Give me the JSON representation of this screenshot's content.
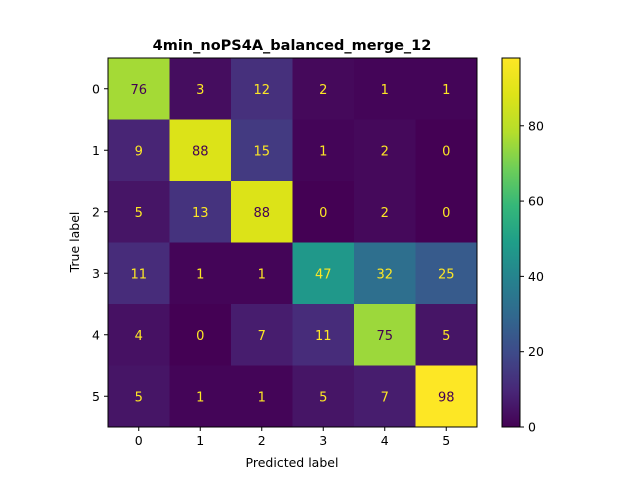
{
  "chart_data": {
    "type": "heatmap",
    "title": "4min_noPS4A_balanced_merge_12",
    "xlabel": "Predicted label",
    "ylabel": "True label",
    "x_ticks": [
      "0",
      "1",
      "2",
      "3",
      "4",
      "5"
    ],
    "y_ticks": [
      "0",
      "1",
      "2",
      "3",
      "4",
      "5"
    ],
    "matrix": [
      [
        76,
        3,
        12,
        2,
        1,
        1
      ],
      [
        9,
        88,
        15,
        1,
        2,
        0
      ],
      [
        5,
        13,
        88,
        0,
        2,
        0
      ],
      [
        11,
        1,
        1,
        47,
        32,
        25
      ],
      [
        4,
        0,
        7,
        11,
        75,
        5
      ],
      [
        5,
        1,
        1,
        5,
        7,
        98
      ]
    ],
    "colorscale": "viridis",
    "vmin": 0,
    "vmax": 98,
    "colorbar_ticks": [
      "0",
      "20",
      "40",
      "60",
      "80"
    ],
    "colorbar_tick_values": [
      0,
      20,
      40,
      60,
      80
    ],
    "text_color_light": "#fde725",
    "text_color_dark": "#440154"
  }
}
